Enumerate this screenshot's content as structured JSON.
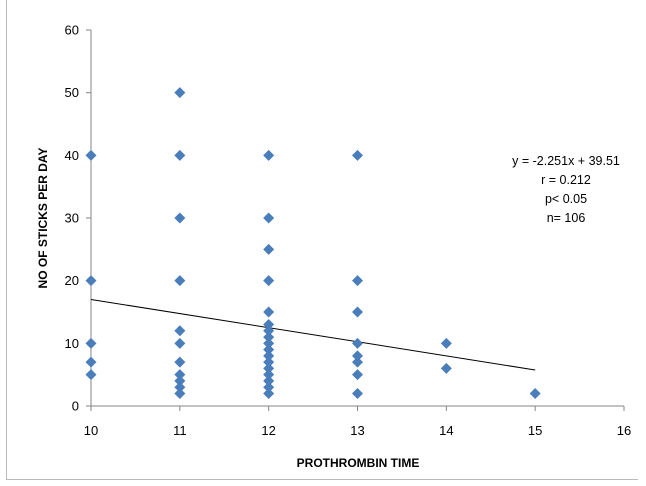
{
  "chart_data": {
    "type": "scatter",
    "title": "",
    "xlabel": "PROTHROMBIN TIME",
    "ylabel": "NO OF  STICKS PER DAY",
    "xlim": [
      10,
      16
    ],
    "ylim": [
      0,
      60
    ],
    "x_ticks": [
      10,
      11,
      12,
      13,
      14,
      15,
      16
    ],
    "y_ticks": [
      0,
      10,
      20,
      30,
      40,
      50,
      60
    ],
    "grid": false,
    "marker_color": "#4a7ebb",
    "trendline_color": "#000000",
    "points": [
      {
        "x": 10,
        "y": 40
      },
      {
        "x": 10,
        "y": 20
      },
      {
        "x": 10,
        "y": 10
      },
      {
        "x": 10,
        "y": 7
      },
      {
        "x": 10,
        "y": 5
      },
      {
        "x": 11,
        "y": 50
      },
      {
        "x": 11,
        "y": 40
      },
      {
        "x": 11,
        "y": 30
      },
      {
        "x": 11,
        "y": 20
      },
      {
        "x": 11,
        "y": 12
      },
      {
        "x": 11,
        "y": 10
      },
      {
        "x": 11,
        "y": 7
      },
      {
        "x": 11,
        "y": 5
      },
      {
        "x": 11,
        "y": 4
      },
      {
        "x": 11,
        "y": 3
      },
      {
        "x": 11,
        "y": 2
      },
      {
        "x": 12,
        "y": 40
      },
      {
        "x": 12,
        "y": 30
      },
      {
        "x": 12,
        "y": 25
      },
      {
        "x": 12,
        "y": 20
      },
      {
        "x": 12,
        "y": 15
      },
      {
        "x": 12,
        "y": 13
      },
      {
        "x": 12,
        "y": 12
      },
      {
        "x": 12,
        "y": 11
      },
      {
        "x": 12,
        "y": 10
      },
      {
        "x": 12,
        "y": 9
      },
      {
        "x": 12,
        "y": 8
      },
      {
        "x": 12,
        "y": 7
      },
      {
        "x": 12,
        "y": 6
      },
      {
        "x": 12,
        "y": 5
      },
      {
        "x": 12,
        "y": 4
      },
      {
        "x": 12,
        "y": 3
      },
      {
        "x": 12,
        "y": 2
      },
      {
        "x": 13,
        "y": 40
      },
      {
        "x": 13,
        "y": 20
      },
      {
        "x": 13,
        "y": 15
      },
      {
        "x": 13,
        "y": 10
      },
      {
        "x": 13,
        "y": 8
      },
      {
        "x": 13,
        "y": 7
      },
      {
        "x": 13,
        "y": 5
      },
      {
        "x": 13,
        "y": 2
      },
      {
        "x": 14,
        "y": 10
      },
      {
        "x": 14,
        "y": 6
      },
      {
        "x": 15,
        "y": 2
      }
    ],
    "trendline": {
      "slope": -2.251,
      "intercept": 39.51,
      "x_start": 10,
      "x_end": 15
    },
    "annotations": [
      "y = -2.251x + 39.51",
      "r = 0.212",
      "p< 0.05",
      "n= 106"
    ]
  }
}
